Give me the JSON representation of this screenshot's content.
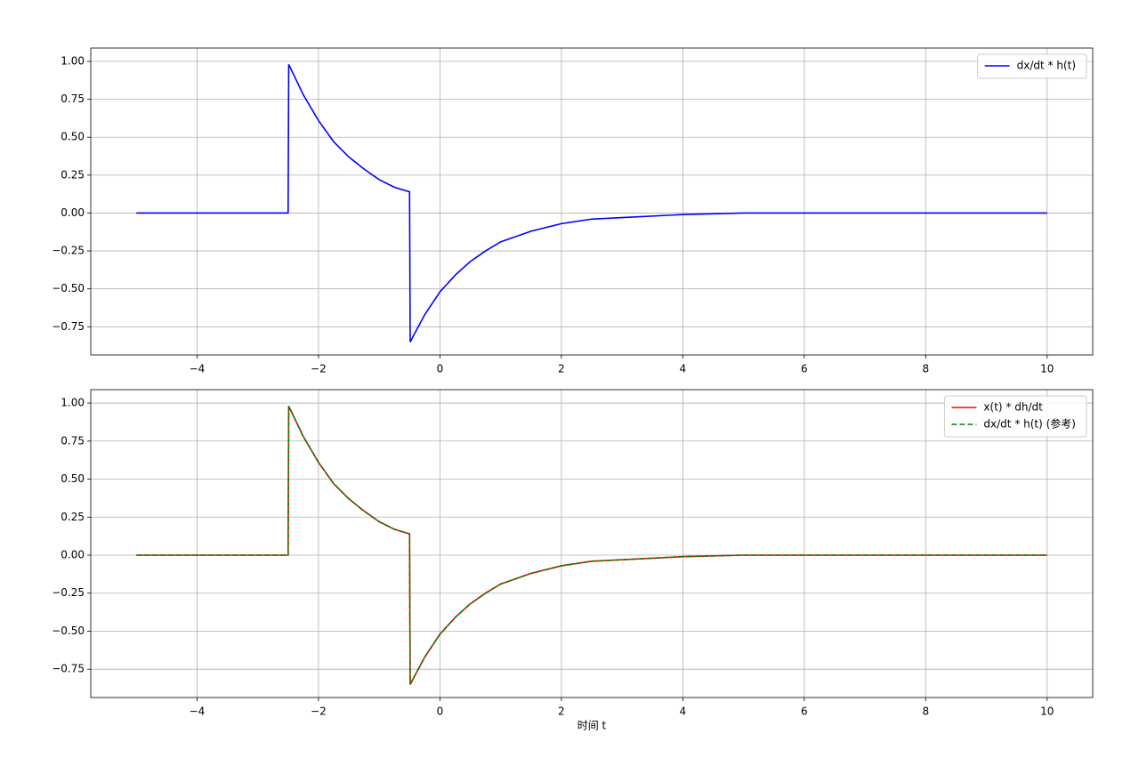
{
  "chart_data": [
    {
      "type": "line",
      "x": [
        -5,
        -2.5,
        -2.49,
        -2.25,
        -2,
        -1.75,
        -1.5,
        -1.25,
        -1,
        -0.75,
        -0.5,
        -0.49,
        -0.25,
        0,
        0.25,
        0.5,
        0.75,
        1,
        1.5,
        2,
        2.5,
        3,
        4,
        5,
        6,
        8,
        10
      ],
      "series": [
        {
          "name": "dx/dt * h(t)",
          "color": "#0000ff",
          "dashed": false,
          "values": [
            0,
            0,
            0.98,
            0.78,
            0.61,
            0.47,
            0.37,
            0.29,
            0.22,
            0.17,
            0.14,
            -0.85,
            -0.67,
            -0.52,
            -0.41,
            -0.32,
            -0.25,
            -0.19,
            -0.12,
            -0.07,
            -0.04,
            -0.03,
            -0.01,
            0,
            0,
            0,
            0
          ]
        }
      ],
      "xlim": [
        -5.75,
        10.75
      ],
      "xticks": [
        {
          "value": -4,
          "label": "−4"
        },
        {
          "value": -2,
          "label": "−2"
        },
        0,
        2,
        4,
        6,
        8,
        10
      ],
      "ylim": [
        -0.936,
        1.088
      ],
      "yticks": [
        {
          "value": -0.75,
          "label": "−0.75"
        },
        {
          "value": -0.5,
          "label": "−0.50"
        },
        {
          "value": -0.25,
          "label": "−0.25"
        },
        {
          "value": 0,
          "label": "0.00"
        },
        {
          "value": 0.25,
          "label": "0.25"
        },
        {
          "value": 0.5,
          "label": "0.50"
        },
        {
          "value": 0.75,
          "label": "0.75"
        },
        {
          "value": 1,
          "label": "1.00"
        }
      ],
      "grid": true,
      "legend": "upper right"
    },
    {
      "type": "line",
      "x": [
        -5,
        -2.5,
        -2.49,
        -2.25,
        -2,
        -1.75,
        -1.5,
        -1.25,
        -1,
        -0.75,
        -0.5,
        -0.49,
        -0.25,
        0,
        0.25,
        0.5,
        0.75,
        1,
        1.5,
        2,
        2.5,
        3,
        4,
        5,
        6,
        8,
        10
      ],
      "series": [
        {
          "name": "x(t) * dh/dt",
          "color": "#ff0000",
          "dashed": false,
          "values": [
            0,
            0,
            0.98,
            0.78,
            0.61,
            0.47,
            0.37,
            0.29,
            0.22,
            0.17,
            0.14,
            -0.85,
            -0.67,
            -0.52,
            -0.41,
            -0.32,
            -0.25,
            -0.19,
            -0.12,
            -0.07,
            -0.04,
            -0.03,
            -0.01,
            0,
            0,
            0,
            0
          ]
        },
        {
          "name": "dx/dt * h(t) (参考)",
          "color": "#008000",
          "dashed": true,
          "values": [
            0,
            0,
            0.98,
            0.78,
            0.61,
            0.47,
            0.37,
            0.29,
            0.22,
            0.17,
            0.14,
            -0.85,
            -0.67,
            -0.52,
            -0.41,
            -0.32,
            -0.25,
            -0.19,
            -0.12,
            -0.07,
            -0.04,
            -0.03,
            -0.01,
            0,
            0,
            0,
            0
          ]
        }
      ],
      "x_label": "时间 t",
      "xlim": [
        -5.75,
        10.75
      ],
      "xticks": [
        {
          "value": -4,
          "label": "−4"
        },
        {
          "value": -2,
          "label": "−2"
        },
        0,
        2,
        4,
        6,
        8,
        10
      ],
      "ylim": [
        -0.936,
        1.088
      ],
      "yticks": [
        {
          "value": -0.75,
          "label": "−0.75"
        },
        {
          "value": -0.5,
          "label": "−0.50"
        },
        {
          "value": -0.25,
          "label": "−0.25"
        },
        {
          "value": 0,
          "label": "0.00"
        },
        {
          "value": 0.25,
          "label": "0.25"
        },
        {
          "value": 0.5,
          "label": "0.50"
        },
        {
          "value": 0.75,
          "label": "0.75"
        },
        {
          "value": 1,
          "label": "1.00"
        }
      ],
      "grid": true,
      "legend": "upper right"
    }
  ]
}
